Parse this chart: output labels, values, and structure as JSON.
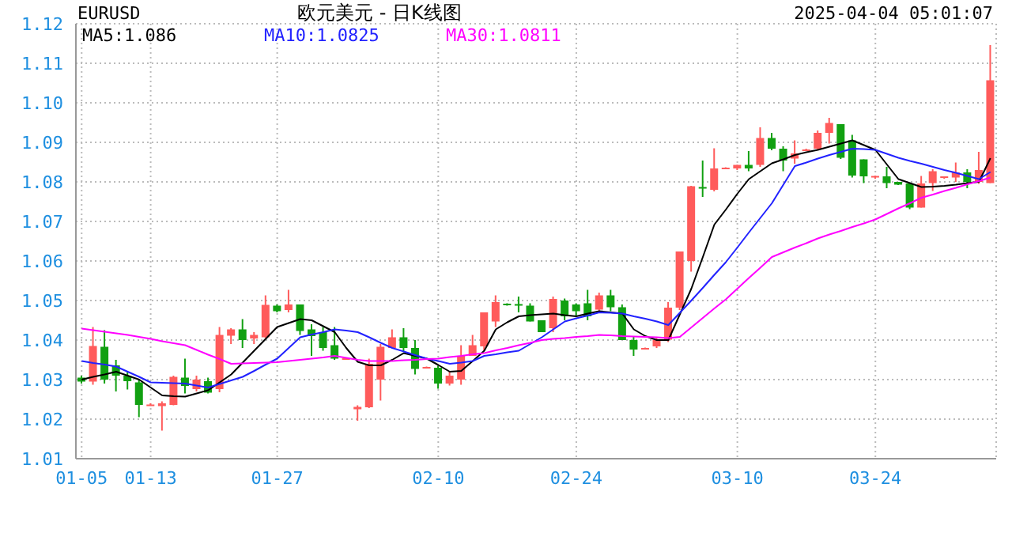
{
  "chart_data": {
    "type": "candlestick",
    "title": "欧元美元 - 日K线图",
    "annotations": [
      "EURUSD",
      "2025-04-04 05:01:07"
    ],
    "categories": [
      "01-05",
      null,
      null,
      null,
      null,
      null,
      "01-13",
      null,
      null,
      null,
      null,
      null,
      null,
      null,
      null,
      null,
      null,
      "01-27",
      null,
      null,
      null,
      null,
      null,
      null,
      null,
      null,
      null,
      null,
      null,
      null,
      null,
      "02-10",
      null,
      null,
      null,
      null,
      null,
      null,
      null,
      null,
      null,
      null,
      null,
      "02-24",
      null,
      null,
      null,
      null,
      null,
      null,
      null,
      null,
      null,
      null,
      null,
      null,
      null,
      "03-10",
      null,
      null,
      null,
      null,
      null,
      null,
      null,
      null,
      null,
      null,
      null,
      "03-24",
      null,
      null,
      null,
      null,
      null,
      null,
      null,
      null,
      null,
      null
    ],
    "series": [
      {
        "ohlc": [
          [
            1.0305,
            1.031,
            1.029,
            1.0295
          ],
          [
            1.0295,
            1.0433,
            1.0287,
            1.0385
          ],
          [
            1.0383,
            1.0425,
            1.029,
            1.03
          ],
          [
            1.0336,
            1.035,
            1.027,
            1.031
          ],
          [
            1.031,
            1.032,
            1.0275,
            1.0296
          ],
          [
            1.0293,
            1.03,
            1.0205,
            1.0236
          ],
          [
            1.0235,
            1.024,
            1.0234,
            1.0237
          ],
          [
            1.0233,
            1.0245,
            1.0171,
            1.024
          ],
          [
            1.0236,
            1.031,
            1.0235,
            1.0307
          ],
          [
            1.0305,
            1.0353,
            1.0265,
            1.0284
          ],
          [
            1.0276,
            1.031,
            1.027,
            1.03
          ],
          [
            1.0296,
            1.0305,
            1.0265,
            1.0267
          ],
          [
            1.0276,
            1.0433,
            1.0268,
            1.0413
          ],
          [
            1.0411,
            1.043,
            1.039,
            1.0427
          ],
          [
            1.0427,
            1.0453,
            1.038,
            1.04
          ],
          [
            1.0404,
            1.042,
            1.039,
            1.0413
          ],
          [
            1.0407,
            1.0513,
            1.0405,
            1.0489
          ],
          [
            1.0487,
            1.049,
            1.047,
            1.0473
          ],
          [
            1.0476,
            1.0527,
            1.047,
            1.049
          ],
          [
            1.049,
            1.049,
            1.0413,
            1.0423
          ],
          [
            1.0427,
            1.044,
            1.036,
            1.041
          ],
          [
            1.042,
            1.0433,
            1.0373,
            1.038
          ],
          [
            1.0387,
            1.0433,
            1.035,
            1.0353
          ],
          [
            1.0351,
            1.0355,
            1.035,
            1.0354
          ],
          [
            1.0225,
            1.0235,
            1.0196,
            1.0231
          ],
          [
            1.023,
            1.0353,
            1.0228,
            1.034
          ],
          [
            1.03,
            1.039,
            1.0247,
            1.0383
          ],
          [
            1.038,
            1.0427,
            1.038,
            1.0407
          ],
          [
            1.0407,
            1.043,
            1.037,
            1.038
          ],
          [
            1.038,
            1.04,
            1.0313,
            1.0327
          ],
          [
            1.033,
            1.0333,
            1.033,
            1.0332
          ],
          [
            1.033,
            1.0335,
            1.0277,
            1.029
          ],
          [
            1.029,
            1.032,
            1.0285,
            1.031
          ],
          [
            1.03,
            1.0387,
            1.0287,
            1.036
          ],
          [
            1.036,
            1.0413,
            1.036,
            1.0387
          ],
          [
            1.0384,
            1.047,
            1.0373,
            1.047
          ],
          [
            1.0447,
            1.0513,
            1.0433,
            1.0496
          ],
          [
            1.0492,
            1.0493,
            1.0487,
            1.0488
          ],
          [
            1.0491,
            1.051,
            1.047,
            1.0489
          ],
          [
            1.0487,
            1.0493,
            1.0447,
            1.0447
          ],
          [
            1.045,
            1.045,
            1.042,
            1.042
          ],
          [
            1.043,
            1.051,
            1.042,
            1.0504
          ],
          [
            1.05,
            1.0505,
            1.045,
            1.046
          ],
          [
            1.049,
            1.0493,
            1.046,
            1.0473
          ],
          [
            1.0493,
            1.0527,
            1.045,
            1.046
          ],
          [
            1.0477,
            1.052,
            1.047,
            1.0513
          ],
          [
            1.0513,
            1.0527,
            1.0473,
            1.0483
          ],
          [
            1.0483,
            1.049,
            1.04,
            1.04
          ],
          [
            1.04,
            1.041,
            1.036,
            1.0376
          ],
          [
            1.0378,
            1.0381,
            1.0377,
            1.038
          ],
          [
            1.0384,
            1.0405,
            1.038,
            1.04
          ],
          [
            1.0401,
            1.0496,
            1.0395,
            1.0482
          ],
          [
            1.0482,
            1.0624,
            1.0476,
            1.0624
          ],
          [
            1.06,
            1.079,
            1.0573,
            1.0789
          ],
          [
            1.0787,
            1.0854,
            1.0762,
            1.0783
          ],
          [
            1.078,
            1.0885,
            1.0776,
            1.0834
          ],
          [
            1.0834,
            1.0837,
            1.0832,
            1.0836
          ],
          [
            1.0834,
            1.0843,
            1.083,
            1.0843
          ],
          [
            1.0843,
            1.0878,
            1.0827,
            1.0834
          ],
          [
            1.0843,
            1.0938,
            1.0838,
            1.0911
          ],
          [
            1.0911,
            1.0924,
            1.088,
            1.0884
          ],
          [
            1.0884,
            1.089,
            1.0827,
            1.0854
          ],
          [
            1.0859,
            1.0905,
            1.0846,
            1.0872
          ],
          [
            1.0881,
            1.0884,
            1.0878,
            1.0882
          ],
          [
            1.0884,
            1.093,
            1.0882,
            1.0924
          ],
          [
            1.0924,
            1.0962,
            1.0897,
            1.0949
          ],
          [
            1.0946,
            1.0946,
            1.0858,
            1.0861
          ],
          [
            1.0905,
            1.0919,
            1.0811,
            1.0816
          ],
          [
            1.0857,
            1.0857,
            1.0797,
            1.0814
          ],
          [
            1.0811,
            1.0816,
            1.0808,
            1.0815
          ],
          [
            1.0814,
            1.0838,
            1.0784,
            1.0797
          ],
          [
            1.08,
            1.08,
            1.0792,
            1.0793
          ],
          [
            1.0796,
            1.0797,
            1.0731,
            1.0735
          ],
          [
            1.0735,
            1.0815,
            1.0735,
            1.0796
          ],
          [
            1.0797,
            1.0832,
            1.0777,
            1.0827
          ],
          [
            1.0811,
            1.0814,
            1.0808,
            1.0814
          ],
          [
            1.0811,
            1.0849,
            1.08,
            1.0824
          ],
          [
            1.0824,
            1.0832,
            1.0784,
            1.08
          ],
          [
            1.08,
            1.0876,
            1.0795,
            1.083
          ],
          [
            1.0797,
            1.1146,
            1.0797,
            1.1057
          ]
        ],
        "colors": [
          "#11a011",
          "#ff5b5b",
          "#11a011",
          "#11a011",
          "#11a011",
          "#11a011",
          "#ff5b5b",
          "#ff5b5b",
          "#ff5b5b",
          "#11a011",
          "#ff5b5b",
          "#11a011",
          "#ff5b5b",
          "#ff5b5b",
          "#11a011",
          "#ff5b5b",
          "#ff5b5b",
          "#11a011",
          "#ff5b5b",
          "#11a011",
          "#11a011",
          "#11a011",
          "#11a011",
          "#ff5b5b",
          "#ff5b5b",
          "#ff5b5b",
          "#ff5b5b",
          "#ff5b5b",
          "#11a011",
          "#11a011",
          "#ff5b5b",
          "#11a011",
          "#ff5b5b",
          "#ff5b5b",
          "#ff5b5b",
          "#ff5b5b",
          "#ff5b5b",
          "#11a011",
          "#11a011",
          "#11a011",
          "#11a011",
          "#ff5b5b",
          "#11a011",
          "#11a011",
          "#11a011",
          "#ff5b5b",
          "#11a011",
          "#11a011",
          "#11a011",
          "#ff5b5b",
          "#ff5b5b",
          "#ff5b5b",
          "#ff5b5b",
          "#ff5b5b",
          "#11a011",
          "#ff5b5b",
          "#ff5b5b",
          "#ff5b5b",
          "#11a011",
          "#ff5b5b",
          "#11a011",
          "#11a011",
          "#ff5b5b",
          "#ff5b5b",
          "#ff5b5b",
          "#ff5b5b",
          "#11a011",
          "#11a011",
          "#11a011",
          "#ff5b5b",
          "#11a011",
          "#11a011",
          "#11a011",
          "#ff5b5b",
          "#ff5b5b",
          "#ff5b5b",
          "#ff5b5b",
          "#11a011",
          "#ff5b5b",
          "#ff5b5b"
        ]
      },
      {
        "type": "line",
        "name": "MA5:1.086",
        "color": "#000000",
        "values": [
          1.03,
          1.0307,
          1.0313,
          1.032,
          1.031,
          1.03,
          1.028,
          1.026,
          1.0258,
          1.0257,
          1.0265,
          1.0273,
          1.0293,
          1.0313,
          1.0343,
          1.0373,
          1.0403,
          1.0433,
          1.0443,
          1.0453,
          1.045,
          1.0435,
          1.042,
          1.038,
          1.0345,
          1.0336,
          1.0336,
          1.035,
          1.0367,
          1.036,
          1.0353,
          1.0337,
          1.032,
          1.0322,
          1.0347,
          1.0373,
          1.0427,
          1.0445,
          1.046,
          1.0463,
          1.0465,
          1.0467,
          1.0463,
          1.046,
          1.0467,
          1.0473,
          1.047,
          1.0467,
          1.0427,
          1.041,
          1.04,
          1.04,
          1.0465,
          1.053,
          1.061,
          1.0692,
          1.073,
          1.077,
          1.0807,
          1.0827,
          1.0847,
          1.0857,
          1.0868,
          1.0875,
          1.0881,
          1.0889,
          1.0897,
          1.0905,
          1.0893,
          1.0881,
          1.0844,
          1.0807,
          1.0797,
          1.0787,
          1.0788,
          1.079,
          1.0793,
          1.0797,
          1.08,
          1.086
        ]
      },
      {
        "type": "line",
        "name": "MA10:1.0825",
        "color": "#2222ff",
        "values": [
          1.0347,
          1.0342,
          1.0338,
          1.0333,
          1.032,
          1.0307,
          1.0293,
          1.0292,
          1.0291,
          1.029,
          1.0285,
          1.028,
          1.0289,
          1.0298,
          1.0307,
          1.0322,
          1.0338,
          1.0353,
          1.038,
          1.0407,
          1.0414,
          1.042,
          1.0427,
          1.0424,
          1.042,
          1.0407,
          1.0393,
          1.038,
          1.0371,
          1.0362,
          1.0353,
          1.0347,
          1.034,
          1.0343,
          1.0347,
          1.036,
          1.0364,
          1.0369,
          1.0373,
          1.039,
          1.0407,
          1.0427,
          1.0447,
          1.0455,
          1.0462,
          1.047,
          1.0469,
          1.0467,
          1.046,
          1.0454,
          1.0447,
          1.0438,
          1.0469,
          1.05,
          1.0532,
          1.0565,
          1.0597,
          1.0634,
          1.0672,
          1.0709,
          1.0746,
          1.0793,
          1.084,
          1.0849,
          1.0859,
          1.0868,
          1.0876,
          1.0884,
          1.0883,
          1.0881,
          1.0871,
          1.0861,
          1.0853,
          1.0846,
          1.0838,
          1.083,
          1.0823,
          1.0815,
          1.0807,
          1.0825
        ]
      },
      {
        "type": "line",
        "name": "MA30:1.0811",
        "color": "#ff00ff",
        "values": [
          1.0429,
          1.0425,
          1.0421,
          1.0417,
          1.0413,
          1.0408,
          1.0403,
          1.0397,
          1.0392,
          1.0387,
          1.0375,
          1.0363,
          1.0352,
          1.034,
          1.0341,
          1.0342,
          1.0343,
          1.0344,
          1.0347,
          1.035,
          1.0353,
          1.0356,
          1.036,
          1.0355,
          1.035,
          1.0347,
          1.0347,
          1.0347,
          1.0349,
          1.035,
          1.0352,
          1.0353,
          1.0357,
          1.036,
          1.0364,
          1.0367,
          1.0374,
          1.038,
          1.0387,
          1.0393,
          1.04,
          1.0403,
          1.0405,
          1.0408,
          1.041,
          1.0413,
          1.0412,
          1.041,
          1.0409,
          1.0408,
          1.0407,
          1.0405,
          1.0408,
          1.0432,
          1.0456,
          1.048,
          1.0503,
          1.053,
          1.0557,
          1.0583,
          1.061,
          1.0622,
          1.0634,
          1.0645,
          1.0657,
          1.0667,
          1.0676,
          1.0686,
          1.0695,
          1.0705,
          1.0719,
          1.0733,
          1.0746,
          1.076,
          1.0768,
          1.0777,
          1.0785,
          1.0794,
          1.0802,
          1.0811
        ]
      }
    ],
    "ylim": [
      1.01,
      1.12
    ],
    "yticks": [
      1.01,
      1.02,
      1.03,
      1.04,
      1.05,
      1.06,
      1.07,
      1.08,
      1.09,
      {
        "value": 1.1,
        "label": "1.10"
      },
      1.11,
      1.12
    ],
    "grid": true,
    "legend": "top left",
    "line_style": "solid",
    "marker": "none"
  }
}
